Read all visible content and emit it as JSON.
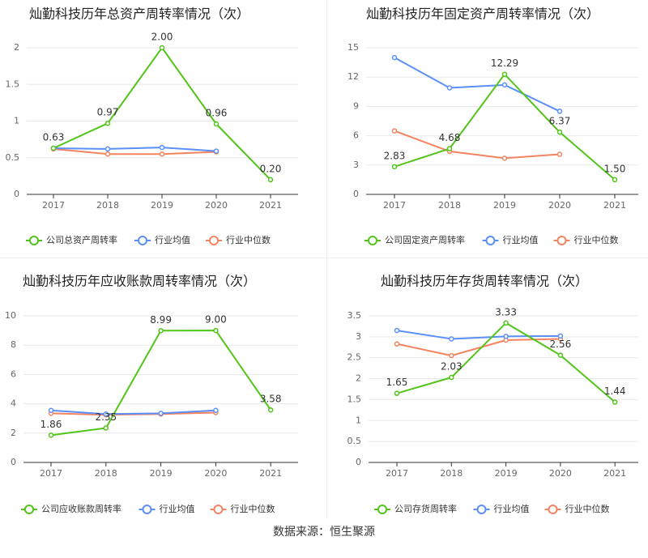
{
  "colors": {
    "company": "#52c41a",
    "industry_avg": "#5b8ff9",
    "industry_median": "#f4845f",
    "axis": "#333333",
    "grid": "#e8e8e8",
    "tick_text": "#666666",
    "title_text": "#222222"
  },
  "source_text": "数据来源：恒生聚源",
  "chart_data": [
    {
      "type": "line",
      "title": "灿勤科技历年总资产周转率情况（次）",
      "categories": [
        "2017",
        "2018",
        "2019",
        "2020",
        "2021"
      ],
      "ylim": [
        0,
        2
      ],
      "yticks": [
        0,
        0.5,
        1,
        1.5,
        2
      ],
      "ytick_labels": [
        "0",
        "0.5",
        "1",
        "1.5",
        "2"
      ],
      "series": [
        {
          "name": "公司总资产周转率",
          "key": "company",
          "values": [
            0.63,
            0.97,
            2.0,
            0.96,
            0.2
          ],
          "labels": [
            "0.63",
            "0.97",
            "2.00",
            "0.96",
            "0.20"
          ]
        },
        {
          "name": "行业均值",
          "key": "industry_avg",
          "values": [
            0.63,
            0.62,
            0.64,
            0.59,
            null
          ]
        },
        {
          "name": "行业中位数",
          "key": "industry_median",
          "values": [
            0.62,
            0.55,
            0.55,
            0.58,
            null
          ]
        }
      ]
    },
    {
      "type": "line",
      "title": "灿勤科技历年固定资产周转率情况（次）",
      "categories": [
        "2017",
        "2018",
        "2019",
        "2020",
        "2021"
      ],
      "ylim": [
        0,
        15
      ],
      "yticks": [
        0,
        3,
        6,
        9,
        12,
        15
      ],
      "ytick_labels": [
        "0",
        "3",
        "6",
        "9",
        "12",
        "15"
      ],
      "series": [
        {
          "name": "公司固定资产周转率",
          "key": "company",
          "values": [
            2.83,
            4.68,
            12.29,
            6.37,
            1.5
          ],
          "labels": [
            "2.83",
            "4.68",
            "12.29",
            "6.37",
            "1.50"
          ]
        },
        {
          "name": "行业均值",
          "key": "industry_avg",
          "values": [
            14.0,
            10.9,
            11.2,
            8.5,
            null
          ]
        },
        {
          "name": "行业中位数",
          "key": "industry_median",
          "values": [
            6.5,
            4.4,
            3.7,
            4.1,
            null
          ]
        }
      ]
    },
    {
      "type": "line",
      "title": "灿勤科技历年应收账款周转率情况（次）",
      "categories": [
        "2017",
        "2018",
        "2019",
        "2020",
        "2021"
      ],
      "ylim": [
        0,
        10
      ],
      "yticks": [
        0,
        2,
        4,
        6,
        8,
        10
      ],
      "ytick_labels": [
        "0",
        "2",
        "4",
        "6",
        "8",
        "10"
      ],
      "series": [
        {
          "name": "公司应收账款周转率",
          "key": "company",
          "values": [
            1.86,
            2.35,
            8.99,
            9.0,
            3.58
          ],
          "labels": [
            "1.86",
            "2.35",
            "8.99",
            "9.00",
            "3.58"
          ]
        },
        {
          "name": "行业均值",
          "key": "industry_avg",
          "values": [
            3.55,
            3.3,
            3.35,
            3.55,
            null
          ]
        },
        {
          "name": "行业中位数",
          "key": "industry_median",
          "values": [
            3.35,
            3.25,
            3.3,
            3.4,
            null
          ]
        }
      ]
    },
    {
      "type": "line",
      "title": "灿勤科技历年存货周转率情况（次）",
      "categories": [
        "2017",
        "2018",
        "2019",
        "2020",
        "2021"
      ],
      "ylim": [
        0,
        3.5
      ],
      "yticks": [
        0,
        0.5,
        1,
        1.5,
        2,
        2.5,
        3,
        3.5
      ],
      "ytick_labels": [
        "0",
        "0.5",
        "1",
        "1.5",
        "2",
        "2.5",
        "3",
        "3.5"
      ],
      "series": [
        {
          "name": "公司存货周转率",
          "key": "company",
          "values": [
            1.65,
            2.03,
            3.33,
            2.56,
            1.44
          ],
          "labels": [
            "1.65",
            "2.03",
            "3.33",
            "2.56",
            "1.44"
          ]
        },
        {
          "name": "行业均值",
          "key": "industry_avg",
          "values": [
            3.15,
            2.95,
            3.01,
            3.02,
            null
          ]
        },
        {
          "name": "行业中位数",
          "key": "industry_median",
          "values": [
            2.83,
            2.55,
            2.92,
            2.95,
            null
          ]
        }
      ]
    }
  ]
}
